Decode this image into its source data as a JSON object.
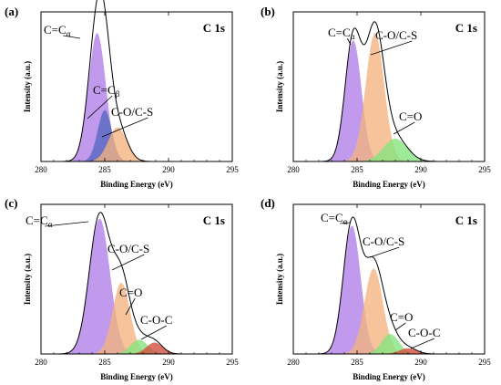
{
  "colors": {
    "purple": "#b07ee8",
    "orange": "#f4b27d",
    "green": "#84e47e",
    "red": "#d24a3c",
    "blue": "#5566c0",
    "envelope": "#000000"
  },
  "panels": [
    {
      "label": "(a)",
      "corner": "C 1s",
      "xlabel": "Binding Energy (eV)",
      "ylabel": "Intensity (a.u.)",
      "annotations": [
        {
          "text": "C=C",
          "sub": "α"
        },
        {
          "text": "C=C",
          "sub": "β"
        },
        {
          "text": "C-O/C-S",
          "sub": ""
        }
      ]
    },
    {
      "label": "(b)",
      "corner": "C 1s",
      "xlabel": "Binding Energy (eV)",
      "ylabel": "Intensity (a.u.)",
      "annotations": [
        {
          "text": "C=C",
          "sub": "α"
        },
        {
          "text": "C-O/C-S",
          "sub": ""
        },
        {
          "text": "C=O",
          "sub": ""
        }
      ]
    },
    {
      "label": "(c)",
      "corner": "C 1s",
      "xlabel": "Binding Energy (eV)",
      "ylabel": "Intensity (a.u.)",
      "annotations": [
        {
          "text": "C=C",
          "sub": "α"
        },
        {
          "text": "C-O/C-S",
          "sub": ""
        },
        {
          "text": "C=O",
          "sub": ""
        },
        {
          "text": "C-O-C",
          "sub": ""
        }
      ]
    },
    {
      "label": "(d)",
      "corner": "C 1s",
      "xlabel": "Binding Energy (eV)",
      "ylabel": "Intensity (a.u.)",
      "annotations": [
        {
          "text": "C=C",
          "sub": "α"
        },
        {
          "text": "C-O/C-S",
          "sub": ""
        },
        {
          "text": "C=O",
          "sub": ""
        },
        {
          "text": "C-O-C",
          "sub": ""
        }
      ]
    }
  ],
  "chart_data": [
    {
      "type": "area",
      "title": "C 1s",
      "xlabel": "Binding Energy (eV)",
      "ylabel": "Intensity (a.u.)",
      "xlim": [
        280,
        295
      ],
      "ylim": [
        0,
        1.05
      ],
      "xticks": [
        280,
        285,
        290,
        295
      ],
      "yticks_shown": false,
      "components": [
        {
          "label": "C=Cα",
          "center": 284.4,
          "fwhm": 1.6,
          "height": 0.9,
          "color": "purple"
        },
        {
          "label": "C=Cβ",
          "center": 285.0,
          "fwhm": 1.3,
          "height": 0.36,
          "color": "blue"
        },
        {
          "label": "C-O/C-S",
          "center": 286.0,
          "fwhm": 1.7,
          "height": 0.24,
          "color": "orange"
        }
      ]
    },
    {
      "type": "area",
      "title": "C 1s",
      "xlabel": "Binding Energy (eV)",
      "ylabel": "Intensity (a.u.)",
      "xlim": [
        280,
        295
      ],
      "ylim": [
        0,
        1.05
      ],
      "xticks": [
        280,
        285,
        290,
        295
      ],
      "yticks_shown": false,
      "components": [
        {
          "label": "C=Cα",
          "center": 284.7,
          "fwhm": 1.5,
          "height": 0.85,
          "color": "purple"
        },
        {
          "label": "C-O/C-S",
          "center": 286.4,
          "fwhm": 1.7,
          "height": 0.9,
          "color": "orange"
        },
        {
          "label": "C=O",
          "center": 288.0,
          "fwhm": 2.2,
          "height": 0.16,
          "color": "green"
        }
      ]
    },
    {
      "type": "area",
      "title": "C 1s",
      "xlabel": "Binding Energy (eV)",
      "ylabel": "Intensity (a.u.)",
      "xlim": [
        280,
        295
      ],
      "ylim": [
        0,
        1.05
      ],
      "xticks": [
        280,
        285,
        290,
        295
      ],
      "yticks_shown": false,
      "components": [
        {
          "label": "C=Cα",
          "center": 284.6,
          "fwhm": 1.9,
          "height": 0.95,
          "color": "purple"
        },
        {
          "label": "C-O/C-S",
          "center": 286.3,
          "fwhm": 1.6,
          "height": 0.5,
          "color": "orange"
        },
        {
          "label": "C=O",
          "center": 287.7,
          "fwhm": 1.6,
          "height": 0.1,
          "color": "green"
        },
        {
          "label": "C-O-C",
          "center": 288.9,
          "fwhm": 1.5,
          "height": 0.08,
          "color": "red"
        }
      ]
    },
    {
      "type": "area",
      "title": "C 1s",
      "xlabel": "Binding Energy (eV)",
      "ylabel": "Intensity (a.u.)",
      "xlim": [
        280,
        295
      ],
      "ylim": [
        0,
        1.05
      ],
      "xticks": [
        280,
        285,
        290,
        295
      ],
      "yticks_shown": false,
      "components": [
        {
          "label": "C=Cα",
          "center": 284.6,
          "fwhm": 1.6,
          "height": 0.9,
          "color": "purple"
        },
        {
          "label": "C-O/C-S",
          "center": 286.3,
          "fwhm": 1.7,
          "height": 0.6,
          "color": "orange"
        },
        {
          "label": "C=O",
          "center": 287.6,
          "fwhm": 1.6,
          "height": 0.14,
          "color": "green"
        },
        {
          "label": "C-O-C",
          "center": 289.0,
          "fwhm": 1.6,
          "height": 0.04,
          "color": "red"
        }
      ]
    }
  ]
}
